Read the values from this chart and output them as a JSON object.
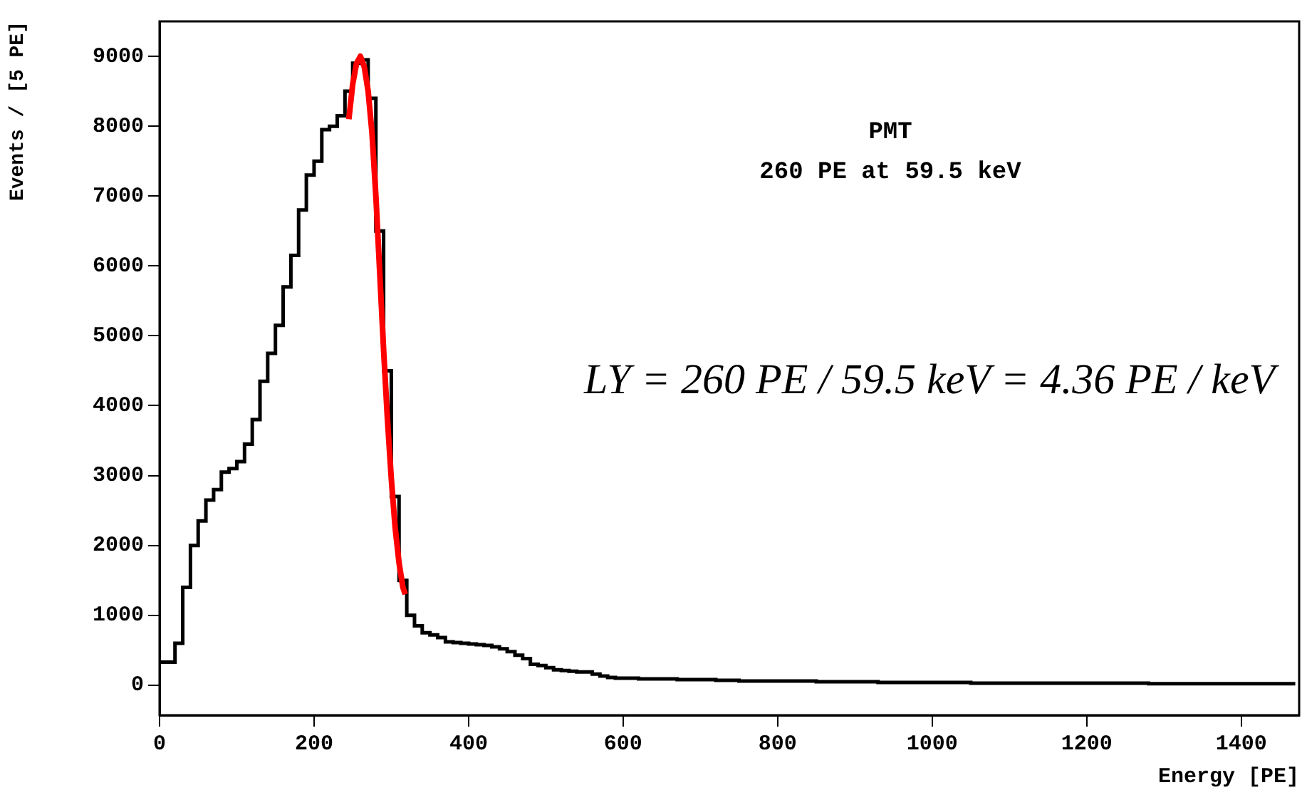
{
  "chart_data": {
    "type": "histogram",
    "xlabel": "Energy [PE]",
    "ylabel": "Events / [5 PE]",
    "xlim": [
      0,
      1475
    ],
    "ylim": [
      -430,
      9500
    ],
    "xticks": [
      0,
      200,
      400,
      600,
      800,
      1000,
      1200,
      1400
    ],
    "yticks": [
      0,
      1000,
      2000,
      3000,
      4000,
      5000,
      6000,
      7000,
      8000,
      9000
    ],
    "grid": false,
    "legend": false,
    "annotations": [
      "PMT",
      "260 PE at 59.5 keV",
      "LY = 260 PE / 59.5 keV = 4.36 PE / keV"
    ],
    "series": [
      {
        "type": "histogram",
        "color": "#000000",
        "bins": [
          0,
          10,
          20,
          30,
          40,
          50,
          60,
          70,
          80,
          90,
          100,
          110,
          120,
          130,
          140,
          150,
          160,
          170,
          180,
          190,
          200,
          210,
          220,
          230,
          240,
          250,
          260,
          270,
          280,
          290,
          300,
          310,
          320,
          330,
          340,
          350,
          360,
          370,
          380,
          390,
          400,
          410,
          420,
          430,
          440,
          450,
          460,
          470,
          480,
          490,
          500,
          510,
          520,
          530,
          540,
          550,
          560,
          570,
          580,
          590,
          600,
          610,
          620,
          630,
          640,
          650,
          660,
          670,
          680,
          690,
          700,
          710,
          720,
          730,
          740,
          750,
          760,
          770,
          780,
          790,
          800,
          810,
          820,
          830,
          840,
          850,
          860,
          870,
          880,
          890,
          900,
          910,
          920,
          930,
          940,
          950,
          960,
          970,
          980,
          990,
          1000,
          1010,
          1020,
          1030,
          1040,
          1050,
          1060,
          1070,
          1080,
          1090,
          1100,
          1110,
          1120,
          1130,
          1140,
          1150,
          1160,
          1170,
          1180,
          1190,
          1200,
          1210,
          1220,
          1230,
          1240,
          1250,
          1260,
          1270,
          1280,
          1290,
          1300,
          1310,
          1320,
          1330,
          1340,
          1350,
          1360,
          1370,
          1380,
          1390,
          1400,
          1410,
          1420,
          1430,
          1440,
          1450,
          1460,
          1470
        ],
        "values": [
          330,
          330,
          600,
          1400,
          2000,
          2350,
          2650,
          2800,
          3050,
          3100,
          3200,
          3450,
          3800,
          4350,
          4750,
          5150,
          5700,
          6150,
          6800,
          7300,
          7500,
          7950,
          8000,
          8150,
          8500,
          8900,
          8950,
          8400,
          6500,
          4500,
          2700,
          1500,
          1000,
          850,
          750,
          720,
          680,
          620,
          610,
          600,
          590,
          580,
          570,
          550,
          520,
          480,
          430,
          380,
          300,
          280,
          250,
          220,
          210,
          200,
          190,
          190,
          160,
          130,
          110,
          100,
          100,
          100,
          90,
          90,
          90,
          90,
          90,
          80,
          80,
          80,
          80,
          80,
          70,
          70,
          70,
          60,
          60,
          60,
          60,
          60,
          60,
          60,
          60,
          60,
          60,
          50,
          50,
          50,
          50,
          50,
          50,
          50,
          50,
          40,
          40,
          40,
          40,
          40,
          40,
          40,
          40,
          40,
          40,
          40,
          40,
          30,
          30,
          30,
          30,
          30,
          30,
          30,
          30,
          30,
          30,
          30,
          30,
          30,
          30,
          30,
          30,
          30,
          30,
          30,
          30,
          30,
          30,
          30,
          20,
          20,
          20,
          20,
          20,
          20,
          20,
          20,
          20,
          20,
          20,
          20,
          20,
          20,
          20,
          20,
          20,
          20,
          20
        ]
      },
      {
        "type": "line",
        "color": "#ff0000",
        "x": [
          245,
          250,
          255,
          260,
          265,
          270,
          275,
          280,
          285,
          290,
          295,
          300,
          305,
          310,
          315,
          318
        ],
        "values": [
          8100,
          8600,
          8900,
          9000,
          8850,
          8500,
          7900,
          7000,
          5900,
          4800,
          3800,
          2950,
          2250,
          1750,
          1400,
          1300
        ]
      }
    ]
  }
}
